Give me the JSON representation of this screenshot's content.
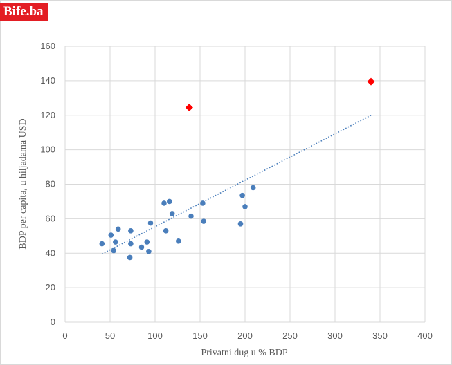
{
  "brand": {
    "logo_text": "Bife.ba",
    "logo_color": "#e31e24"
  },
  "chart_data": {
    "type": "scatter",
    "title": "",
    "xlabel": "Privatni  dug u %  BDP",
    "ylabel": "BDP  per capita,  u hiljadama  USD",
    "xlim": [
      0,
      400
    ],
    "ylim": [
      0,
      160
    ],
    "xticks": [
      0,
      50,
      100,
      150,
      200,
      250,
      300,
      350,
      400
    ],
    "yticks": [
      0,
      20,
      40,
      60,
      80,
      100,
      120,
      140,
      160
    ],
    "grid": true,
    "series": [
      {
        "marker": "circle",
        "color": "#4a7ebb",
        "points": [
          [
            41,
            45.5
          ],
          [
            51,
            50.5
          ],
          [
            54,
            41.5
          ],
          [
            56,
            46.5
          ],
          [
            59,
            54
          ],
          [
            72,
            37.5
          ],
          [
            73,
            45.5
          ],
          [
            73,
            53
          ],
          [
            85,
            43.5
          ],
          [
            91,
            46.5
          ],
          [
            93,
            41
          ],
          [
            95,
            57.5
          ],
          [
            110,
            69
          ],
          [
            112,
            53
          ],
          [
            116,
            70
          ],
          [
            119,
            63
          ],
          [
            126,
            47
          ],
          [
            140,
            61.5
          ],
          [
            153,
            69
          ],
          [
            154,
            58.5
          ],
          [
            195,
            57
          ],
          [
            197,
            73.5
          ],
          [
            200,
            67
          ],
          [
            209,
            78
          ]
        ]
      },
      {
        "marker": "diamond",
        "color": "#ff0000",
        "points": [
          [
            138,
            124.5
          ],
          [
            340,
            139.5
          ]
        ]
      }
    ],
    "trendline": {
      "style": "dotted",
      "color": "#4a7ebb",
      "from": [
        41,
        39.5
      ],
      "to": [
        340,
        120
      ]
    }
  }
}
